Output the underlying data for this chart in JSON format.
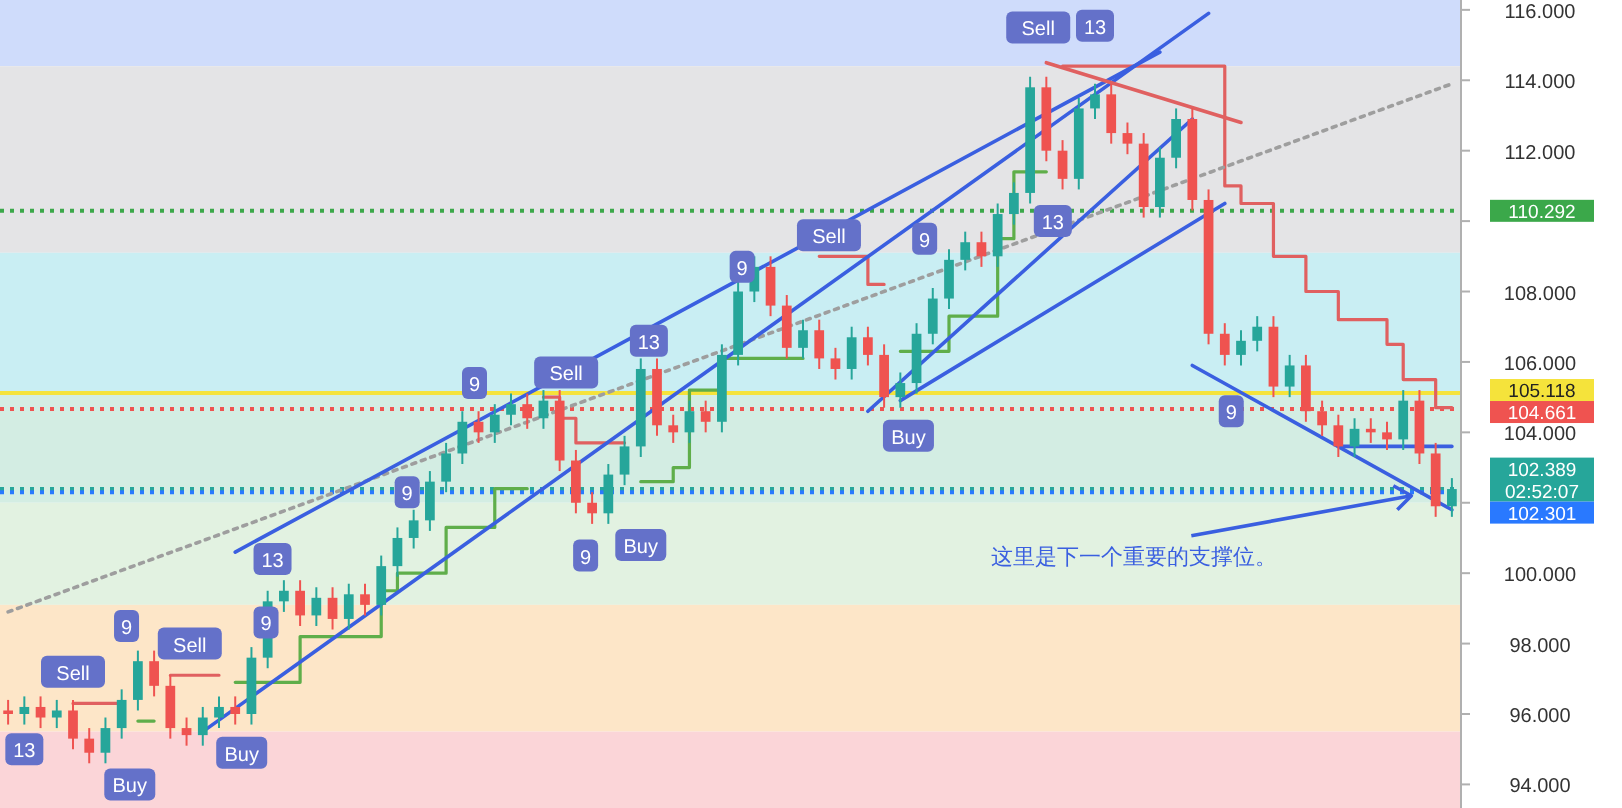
{
  "chart_data": {
    "type": "candlestick",
    "tick_labels": "y",
    "categories": [
      null,
      null,
      null,
      null,
      null,
      null,
      null,
      null,
      null,
      null,
      null,
      null,
      null,
      null,
      null,
      null,
      null,
      null,
      null,
      null,
      null,
      null,
      null,
      null,
      null,
      null,
      null,
      null,
      null,
      null,
      null,
      null,
      null,
      null,
      null,
      null,
      null,
      null,
      null,
      null,
      null,
      null,
      null,
      null,
      null,
      null,
      null,
      null,
      null,
      null,
      null,
      null,
      null,
      null,
      null,
      null,
      null,
      null,
      null,
      null,
      null,
      null,
      null,
      null,
      null,
      null,
      null,
      null,
      null,
      null,
      null,
      null,
      null,
      null,
      null,
      null,
      null,
      null,
      null,
      null,
      null,
      null,
      null,
      null,
      null,
      null,
      null,
      null,
      null,
      null
    ],
    "ylim": [
      93.33,
      116.28
    ],
    "yticks": [
      {
        "value": 94,
        "label": "94.000"
      },
      {
        "value": 96,
        "label": "96.000"
      },
      {
        "value": 98,
        "label": "98.000"
      },
      {
        "value": 100,
        "label": "100.000"
      },
      {
        "value": 102,
        "label": null
      },
      {
        "value": 104,
        "label": "104.000"
      },
      {
        "value": 106,
        "label": "106.000"
      },
      {
        "value": 108,
        "label": "108.000"
      },
      {
        "value": 110,
        "label": null
      },
      {
        "value": 112,
        "label": "112.000"
      },
      {
        "value": 114,
        "label": "114.000"
      },
      {
        "value": 116,
        "label": "116.000"
      }
    ],
    "ohlc": [
      [
        96.1,
        96.4,
        95.7,
        96.0
      ],
      [
        96.0,
        96.5,
        95.7,
        96.2
      ],
      [
        96.2,
        96.5,
        95.6,
        95.9
      ],
      [
        95.9,
        96.4,
        95.6,
        96.1
      ],
      [
        96.1,
        96.4,
        95.0,
        95.3
      ],
      [
        95.3,
        95.6,
        94.6,
        94.9
      ],
      [
        94.9,
        95.9,
        94.6,
        95.6
      ],
      [
        95.6,
        96.7,
        95.3,
        96.4
      ],
      [
        96.4,
        97.8,
        96.1,
        97.5
      ],
      [
        97.5,
        97.8,
        96.5,
        96.8
      ],
      [
        96.8,
        97.1,
        95.3,
        95.6
      ],
      [
        95.6,
        95.9,
        95.1,
        95.4
      ],
      [
        95.4,
        96.2,
        95.1,
        95.9
      ],
      [
        95.9,
        96.5,
        95.6,
        96.2
      ],
      [
        96.2,
        96.5,
        95.7,
        96.0
      ],
      [
        96.0,
        97.9,
        95.7,
        97.6
      ],
      [
        97.6,
        99.5,
        97.3,
        99.2
      ],
      [
        99.2,
        99.8,
        98.9,
        99.5
      ],
      [
        99.5,
        99.8,
        98.5,
        98.8
      ],
      [
        98.8,
        99.6,
        98.5,
        99.3
      ],
      [
        99.3,
        99.6,
        98.4,
        98.7
      ],
      [
        98.7,
        99.7,
        98.4,
        99.4
      ],
      [
        99.4,
        99.7,
        98.8,
        99.1
      ],
      [
        99.1,
        100.5,
        98.8,
        100.2
      ],
      [
        100.2,
        101.3,
        99.9,
        101.0
      ],
      [
        101.0,
        101.8,
        100.7,
        101.5
      ],
      [
        101.5,
        102.9,
        101.2,
        102.6
      ],
      [
        102.6,
        103.7,
        102.3,
        103.4
      ],
      [
        103.4,
        104.6,
        103.1,
        104.3
      ],
      [
        104.3,
        104.6,
        103.7,
        104.0
      ],
      [
        104.0,
        104.8,
        103.7,
        104.5
      ],
      [
        104.5,
        105.1,
        104.2,
        104.8
      ],
      [
        104.8,
        105.1,
        104.1,
        104.4
      ],
      [
        104.4,
        105.2,
        104.1,
        104.9
      ],
      [
        104.9,
        105.2,
        102.9,
        103.2
      ],
      [
        103.2,
        103.5,
        101.7,
        102.0
      ],
      [
        102.0,
        102.3,
        101.4,
        101.7
      ],
      [
        101.7,
        103.1,
        101.4,
        102.8
      ],
      [
        102.8,
        103.9,
        102.5,
        103.6
      ],
      [
        103.6,
        106.1,
        103.3,
        105.8
      ],
      [
        105.8,
        106.1,
        103.9,
        104.2
      ],
      [
        104.2,
        104.5,
        103.7,
        104.0
      ],
      [
        104.0,
        104.9,
        103.7,
        104.6
      ],
      [
        104.6,
        104.9,
        104.0,
        104.3
      ],
      [
        104.3,
        106.5,
        104.0,
        106.2
      ],
      [
        106.2,
        108.3,
        105.9,
        108.0
      ],
      [
        108.0,
        109.0,
        107.7,
        108.7
      ],
      [
        108.7,
        109.0,
        107.3,
        107.6
      ],
      [
        107.6,
        107.9,
        106.1,
        106.4
      ],
      [
        106.4,
        107.2,
        106.1,
        106.9
      ],
      [
        106.9,
        107.2,
        105.8,
        106.1
      ],
      [
        106.1,
        106.4,
        105.5,
        105.8
      ],
      [
        105.8,
        107.0,
        105.5,
        106.7
      ],
      [
        106.7,
        107.0,
        105.9,
        106.2
      ],
      [
        106.2,
        106.5,
        104.7,
        105.0
      ],
      [
        105.0,
        105.7,
        104.7,
        105.4
      ],
      [
        105.4,
        107.1,
        105.1,
        106.8
      ],
      [
        106.8,
        108.1,
        106.5,
        107.8
      ],
      [
        107.8,
        109.2,
        107.5,
        108.9
      ],
      [
        108.9,
        109.7,
        108.6,
        109.4
      ],
      [
        109.4,
        109.7,
        108.7,
        109.0
      ],
      [
        109.0,
        110.5,
        108.7,
        110.2
      ],
      [
        110.2,
        111.1,
        109.9,
        110.8
      ],
      [
        110.8,
        114.1,
        110.5,
        113.8
      ],
      [
        113.8,
        114.1,
        111.7,
        112.0
      ],
      [
        112.0,
        112.3,
        110.9,
        111.2
      ],
      [
        111.2,
        113.5,
        110.9,
        113.2
      ],
      [
        113.2,
        113.9,
        112.9,
        113.6
      ],
      [
        113.6,
        113.9,
        112.2,
        112.5
      ],
      [
        112.5,
        112.8,
        111.9,
        112.2
      ],
      [
        112.2,
        112.5,
        110.1,
        110.4
      ],
      [
        110.4,
        112.1,
        110.1,
        111.8
      ],
      [
        111.8,
        113.2,
        111.5,
        112.9
      ],
      [
        112.9,
        113.2,
        110.3,
        110.6
      ],
      [
        110.6,
        110.9,
        106.5,
        106.8
      ],
      [
        106.8,
        107.1,
        105.9,
        106.2
      ],
      [
        106.2,
        106.9,
        105.9,
        106.6
      ],
      [
        106.6,
        107.3,
        106.3,
        107.0
      ],
      [
        107.0,
        107.3,
        105.0,
        105.3
      ],
      [
        105.3,
        106.2,
        105.0,
        105.9
      ],
      [
        105.9,
        106.2,
        104.3,
        104.6
      ],
      [
        104.6,
        104.9,
        103.9,
        104.2
      ],
      [
        104.2,
        104.5,
        103.3,
        103.6
      ],
      [
        103.6,
        104.4,
        103.3,
        104.1
      ],
      [
        104.1,
        104.4,
        103.7,
        104.0
      ],
      [
        104.0,
        104.3,
        103.5,
        103.8
      ],
      [
        103.8,
        105.2,
        103.5,
        104.9
      ],
      [
        104.9,
        105.2,
        103.1,
        103.4
      ],
      [
        103.4,
        103.7,
        101.6,
        101.9
      ],
      [
        101.9,
        102.7,
        101.6,
        102.389
      ]
    ],
    "colors": [
      "#ef5350",
      "#26a69a",
      "#ef5350",
      "#26a69a",
      "#ef5350",
      "#ef5350",
      "#26a69a",
      "#26a69a",
      "#26a69a",
      "#ef5350",
      "#ef5350",
      "#ef5350",
      "#26a69a",
      "#26a69a",
      "#ef5350",
      "#26a69a",
      "#26a69a",
      "#26a69a",
      "#ef5350",
      "#26a69a",
      "#ef5350",
      "#26a69a",
      "#ef5350",
      "#26a69a",
      "#26a69a",
      "#26a69a",
      "#26a69a",
      "#26a69a",
      "#26a69a",
      "#ef5350",
      "#26a69a",
      "#26a69a",
      "#ef5350",
      "#26a69a",
      "#ef5350",
      "#ef5350",
      "#ef5350",
      "#26a69a",
      "#26a69a",
      "#26a69a",
      "#ef5350",
      "#ef5350",
      "#26a69a",
      "#ef5350",
      "#26a69a",
      "#26a69a",
      "#26a69a",
      "#ef5350",
      "#ef5350",
      "#26a69a",
      "#ef5350",
      "#ef5350",
      "#26a69a",
      "#ef5350",
      "#ef5350",
      "#26a69a",
      "#26a69a",
      "#26a69a",
      "#26a69a",
      "#26a69a",
      "#ef5350",
      "#26a69a",
      "#26a69a",
      "#26a69a",
      "#ef5350",
      "#ef5350",
      "#26a69a",
      "#26a69a",
      "#ef5350",
      "#ef5350",
      "#ef5350",
      "#26a69a",
      "#26a69a",
      "#ef5350",
      "#ef5350",
      "#ef5350",
      "#26a69a",
      "#26a69a",
      "#ef5350",
      "#26a69a",
      "#ef5350",
      "#ef5350",
      "#ef5350",
      "#26a69a",
      "#ef5350",
      "#ef5350",
      "#26a69a",
      "#ef5350",
      "#ef5350",
      "#26a69a"
    ],
    "series": [
      {
        "type": "step",
        "color": "#e06060",
        "values": [
          null,
          null,
          null,
          null,
          96.3,
          96.3,
          96.3,
          96.3,
          null,
          null,
          97.1,
          97.1,
          97.1,
          97.1,
          null,
          null,
          null,
          null,
          null,
          null,
          null,
          null,
          null,
          null,
          null,
          null,
          null,
          null,
          null,
          null,
          null,
          null,
          null,
          105.0,
          104.4,
          103.7,
          103.7,
          103.7,
          103.7,
          null,
          null,
          null,
          null,
          null,
          null,
          null,
          null,
          null,
          null,
          null,
          109.0,
          109.0,
          109.0,
          108.2,
          108.2,
          null,
          null,
          null,
          null,
          null,
          null,
          null,
          null,
          null,
          null,
          114.4,
          114.4,
          114.4,
          114.4,
          114.4,
          114.4,
          114.4,
          114.4,
          114.4,
          114.4,
          111.0,
          110.5,
          110.5,
          109.0,
          109.0,
          108.0,
          108.0,
          107.2,
          107.2,
          107.2,
          106.5,
          105.5,
          105.5,
          104.7,
          104.7
        ]
      },
      {
        "type": "step",
        "color": "#5fae4a",
        "values": [
          null,
          null,
          null,
          null,
          null,
          null,
          null,
          null,
          95.8,
          95.8,
          null,
          null,
          null,
          null,
          96.9,
          96.9,
          96.9,
          96.9,
          98.2,
          98.2,
          98.2,
          98.2,
          98.2,
          99.5,
          100.0,
          100.0,
          100.0,
          101.3,
          101.3,
          101.3,
          102.4,
          102.4,
          102.4,
          null,
          null,
          null,
          null,
          null,
          null,
          102.6,
          102.6,
          103.0,
          105.2,
          105.2,
          106.1,
          106.1,
          106.1,
          106.1,
          106.1,
          106.1,
          null,
          null,
          null,
          null,
          null,
          106.3,
          106.3,
          106.3,
          107.3,
          107.3,
          107.3,
          109.5,
          111.4,
          111.4,
          111.4,
          null,
          null,
          null,
          null,
          null,
          null,
          null,
          null,
          null,
          null,
          null,
          null,
          null,
          null,
          null,
          null,
          null,
          null,
          null,
          null,
          null,
          null,
          null,
          null,
          null
        ]
      },
      {
        "type": "line",
        "color": "#9e9e9e",
        "line_style": "dotted",
        "values": [
          98.9,
          null,
          null,
          null,
          null,
          null,
          null,
          null,
          null,
          null,
          null,
          null,
          null,
          null,
          null,
          null,
          null,
          null,
          null,
          null,
          null,
          null,
          null,
          null,
          null,
          null,
          null,
          null,
          null,
          null,
          null,
          null,
          null,
          null,
          null,
          null,
          null,
          null,
          null,
          null,
          null,
          null,
          null,
          null,
          null,
          null,
          null,
          null,
          null,
          null,
          null,
          null,
          null,
          null,
          null,
          null,
          null,
          null,
          null,
          null,
          null,
          null,
          null,
          null,
          null,
          null,
          null,
          null,
          null,
          null,
          null,
          null,
          null,
          null,
          null,
          null,
          null,
          null,
          null,
          null,
          null,
          null,
          null,
          null,
          null,
          null,
          null,
          null,
          null,
          113.9
        ]
      },
      {
        "type": "line",
        "color": "#3a5fe0",
        "values": [
          null,
          null,
          null,
          null,
          null,
          null,
          null,
          null,
          null,
          null,
          null,
          null,
          null,
          null,
          100.6,
          null,
          null,
          null,
          null,
          null,
          null,
          null,
          null,
          null,
          null,
          null,
          null,
          null,
          null,
          null,
          null,
          null,
          null,
          null,
          null,
          null,
          null,
          null,
          null,
          null,
          null,
          null,
          null,
          null,
          null,
          null,
          null,
          null,
          null,
          null,
          null,
          null,
          null,
          null,
          null,
          null,
          null,
          null,
          null,
          null,
          null,
          null,
          null,
          null,
          null,
          null,
          null,
          null,
          null,
          null,
          null,
          114.8,
          null,
          null,
          null,
          null,
          null,
          null,
          null,
          null,
          null,
          null,
          null,
          null,
          null,
          null,
          null,
          null,
          null,
          null
        ]
      },
      {
        "type": "line",
        "color": "#3a5fe0",
        "values": [
          null,
          null,
          null,
          null,
          null,
          null,
          null,
          null,
          null,
          null,
          null,
          null,
          95.5,
          null,
          null,
          null,
          null,
          null,
          null,
          null,
          null,
          null,
          null,
          null,
          null,
          null,
          null,
          null,
          null,
          null,
          null,
          null,
          null,
          null,
          null,
          null,
          null,
          null,
          null,
          null,
          null,
          null,
          null,
          null,
          null,
          null,
          null,
          null,
          null,
          null,
          null,
          null,
          null,
          null,
          null,
          null,
          null,
          null,
          null,
          null,
          null,
          null,
          null,
          null,
          null,
          null,
          null,
          null,
          null,
          null,
          null,
          null,
          null,
          null,
          115.9,
          null,
          null,
          null,
          null,
          null,
          null,
          null,
          null,
          null,
          null,
          null,
          null,
          null,
          null,
          null
        ]
      },
      {
        "type": "line",
        "color": "#3a5fe0",
        "values": [
          null,
          null,
          null,
          null,
          null,
          null,
          null,
          null,
          null,
          null,
          null,
          null,
          null,
          null,
          null,
          null,
          null,
          null,
          null,
          null,
          null,
          null,
          null,
          null,
          null,
          null,
          null,
          null,
          null,
          null,
          null,
          null,
          null,
          null,
          null,
          null,
          null,
          null,
          null,
          null,
          null,
          null,
          null,
          null,
          null,
          null,
          null,
          null,
          null,
          null,
          null,
          null,
          null,
          104.6,
          null,
          null,
          null,
          null,
          null,
          null,
          null,
          null,
          null,
          null,
          null,
          null,
          null,
          null,
          null,
          null,
          null,
          null,
          null,
          112.9,
          null,
          null,
          null,
          null,
          null,
          null,
          null,
          null,
          null,
          null,
          null,
          null,
          null,
          null,
          null,
          null
        ]
      },
      {
        "type": "line",
        "color": "#3a5fe0",
        "values": [
          null,
          null,
          null,
          null,
          null,
          null,
          null,
          null,
          null,
          null,
          null,
          null,
          null,
          null,
          null,
          null,
          null,
          null,
          null,
          null,
          null,
          null,
          null,
          null,
          null,
          null,
          null,
          null,
          null,
          null,
          null,
          null,
          null,
          null,
          null,
          null,
          null,
          null,
          null,
          null,
          null,
          null,
          null,
          null,
          null,
          null,
          null,
          null,
          null,
          null,
          null,
          null,
          null,
          null,
          null,
          104.9,
          null,
          null,
          null,
          null,
          null,
          null,
          null,
          null,
          null,
          null,
          null,
          null,
          null,
          null,
          null,
          null,
          null,
          null,
          null,
          110.5,
          null,
          null,
          null,
          null,
          null,
          null,
          null,
          null,
          null,
          null,
          null,
          null,
          null,
          null
        ]
      },
      {
        "type": "line",
        "color": "#e06060",
        "values": [
          null,
          null,
          null,
          null,
          null,
          null,
          null,
          null,
          null,
          null,
          null,
          null,
          null,
          null,
          null,
          null,
          null,
          null,
          null,
          null,
          null,
          null,
          null,
          null,
          null,
          null,
          null,
          null,
          null,
          null,
          null,
          null,
          null,
          null,
          null,
          null,
          null,
          null,
          null,
          null,
          null,
          null,
          null,
          null,
          null,
          null,
          null,
          null,
          null,
          null,
          null,
          null,
          null,
          null,
          null,
          null,
          null,
          null,
          null,
          null,
          null,
          null,
          null,
          null,
          114.5,
          null,
          null,
          null,
          null,
          null,
          null,
          null,
          null,
          null,
          null,
          null,
          112.8,
          null,
          null,
          null,
          null,
          null,
          null,
          null,
          null,
          null,
          null,
          null,
          null,
          null
        ]
      },
      {
        "type": "line",
        "color": "#3a5fe0",
        "values": [
          null,
          null,
          null,
          null,
          null,
          null,
          null,
          null,
          null,
          null,
          null,
          null,
          null,
          null,
          null,
          null,
          null,
          null,
          null,
          null,
          null,
          null,
          null,
          null,
          null,
          null,
          null,
          null,
          null,
          null,
          null,
          null,
          null,
          null,
          null,
          null,
          null,
          null,
          null,
          null,
          null,
          null,
          null,
          null,
          null,
          null,
          null,
          null,
          null,
          null,
          null,
          null,
          null,
          null,
          null,
          null,
          null,
          null,
          null,
          null,
          null,
          null,
          null,
          null,
          null,
          null,
          null,
          null,
          null,
          null,
          null,
          null,
          null,
          105.9,
          null,
          null,
          null,
          null,
          null,
          null,
          null,
          null,
          null,
          null,
          null,
          null,
          null,
          null,
          null,
          101.8
        ]
      },
      {
        "type": "line",
        "color": "#3a5fe0",
        "values": [
          null,
          null,
          null,
          null,
          null,
          null,
          null,
          null,
          null,
          null,
          null,
          null,
          null,
          null,
          null,
          null,
          null,
          null,
          null,
          null,
          null,
          null,
          null,
          null,
          null,
          null,
          null,
          null,
          null,
          null,
          null,
          null,
          null,
          null,
          null,
          null,
          null,
          null,
          null,
          null,
          null,
          null,
          null,
          null,
          null,
          null,
          null,
          null,
          null,
          null,
          null,
          null,
          null,
          null,
          null,
          null,
          null,
          null,
          null,
          null,
          null,
          null,
          null,
          null,
          null,
          null,
          null,
          null,
          null,
          null,
          null,
          null,
          null,
          null,
          null,
          null,
          null,
          null,
          null,
          null,
          null,
          null,
          103.6,
          null,
          null,
          null,
          null,
          null,
          null,
          103.6
        ]
      }
    ],
    "bands": [
      {
        "axis": "y",
        "from": 114.4,
        "to": 116.28,
        "color": "#cfdcfb"
      },
      {
        "axis": "y",
        "from": 109.1,
        "to": 114.4,
        "color": "#e4e4e6"
      },
      {
        "axis": "y",
        "from": 105.1,
        "to": 109.1,
        "color": "#c9eef3"
      },
      {
        "axis": "y",
        "from": 102.0,
        "to": 105.1,
        "color": "#d3ede3"
      },
      {
        "axis": "y",
        "from": 99.1,
        "to": 102.0,
        "color": "#e2f2e1"
      },
      {
        "axis": "y",
        "from": 95.5,
        "to": 99.1,
        "color": "#fde6c8"
      },
      {
        "axis": "y",
        "from": 93.33,
        "to": 95.5,
        "color": "#fbd5d8"
      }
    ],
    "ref_lines": [
      {
        "axis": "y",
        "value": 110.292,
        "label": "110.292",
        "color": "#3ba84a",
        "line_style": "dotted"
      },
      {
        "axis": "y",
        "value": 105.118,
        "label": "105.118",
        "color": "#f5e33b",
        "line_style": "solid"
      },
      {
        "axis": "y",
        "value": 104.661,
        "label": "104.661",
        "color": "#ef5350",
        "line_style": "dotted"
      },
      {
        "axis": "y",
        "value": 102.389,
        "label": "102.389\n02:52:07",
        "color": "#26a69a",
        "line_style": "dotted"
      },
      {
        "axis": "y",
        "value": 102.301,
        "label": "102.301",
        "color": "#2979ff",
        "line_style": "dotted"
      }
    ],
    "annotations": [
      {
        "text": "13",
        "y": 95.0
      },
      {
        "text": "Sell",
        "y": 97.2
      },
      {
        "text": "9",
        "y": 98.5
      },
      {
        "text": "Sell",
        "y": 98.0
      },
      {
        "text": "Buy",
        "y": 94.0
      },
      {
        "text": "Buy",
        "y": 94.9
      },
      {
        "text": "9",
        "y": 98.6
      },
      {
        "text": "13",
        "y": 100.4
      },
      {
        "text": "9",
        "y": 102.3
      },
      {
        "text": "9",
        "y": 105.4
      },
      {
        "text": "Sell",
        "y": 105.7
      },
      {
        "text": "9",
        "y": 100.5
      },
      {
        "text": "Buy",
        "y": 100.8
      },
      {
        "text": "13",
        "y": 106.6
      },
      {
        "text": "9",
        "y": 108.7
      },
      {
        "text": "Sell",
        "y": 109.6
      },
      {
        "text": "Buy",
        "y": 103.9
      },
      {
        "text": "9",
        "y": 109.5
      },
      {
        "text": "13",
        "y": 110.0
      },
      {
        "text": "Sell",
        "y": 115.5
      },
      {
        "text": "13",
        "y": 115.55
      },
      {
        "text": "9",
        "y": 104.6
      },
      {
        "text": "这里是下一个重要的支撑位。",
        "y": 102.2
      }
    ]
  }
}
